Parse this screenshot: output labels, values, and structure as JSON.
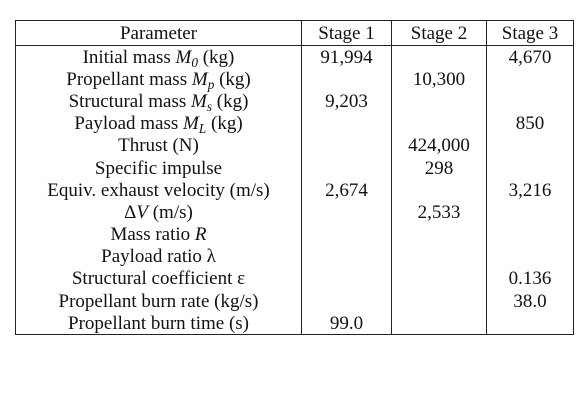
{
  "table": {
    "headers": [
      "Parameter",
      "Stage 1",
      "Stage 2",
      "Stage 3"
    ],
    "rows": [
      {
        "parameter": {
          "text": "Initial mass ",
          "sym": "M",
          "sub": "0",
          "unit": " (kg)"
        },
        "stage1": "91,994",
        "stage2": "",
        "stage3": "4,670"
      },
      {
        "parameter": {
          "text": "Propellant mass ",
          "sym": "M",
          "sub": "p",
          "unit": " (kg)"
        },
        "stage1": "",
        "stage2": "10,300",
        "stage3": ""
      },
      {
        "parameter": {
          "text": "Structural mass ",
          "sym": "M",
          "sub": "s",
          "unit": " (kg)"
        },
        "stage1": "9,203",
        "stage2": "",
        "stage3": ""
      },
      {
        "parameter": {
          "text": "Payload mass ",
          "sym": "M",
          "sub": "L",
          "unit": " (kg)"
        },
        "stage1": "",
        "stage2": "",
        "stage3": "850"
      },
      {
        "parameter": {
          "text": "Thrust (N)",
          "sym": "",
          "sub": "",
          "unit": ""
        },
        "stage1": "",
        "stage2": "424,000",
        "stage3": ""
      },
      {
        "parameter": {
          "text": "Specific impulse",
          "sym": "",
          "sub": "",
          "unit": ""
        },
        "stage1": "",
        "stage2": "298",
        "stage3": ""
      },
      {
        "parameter": {
          "text": "Equiv. exhaust velocity (m/s)",
          "sym": "",
          "sub": "",
          "unit": ""
        },
        "stage1": "2,674",
        "stage2": "",
        "stage3": "3,216"
      },
      {
        "parameter": {
          "text": "Δ",
          "sym": "V",
          "sub": "",
          "unit": " (m/s)"
        },
        "stage1": "",
        "stage2": "2,533",
        "stage3": ""
      },
      {
        "parameter": {
          "text": "Mass ratio ",
          "sym": "R",
          "sub": "",
          "unit": ""
        },
        "stage1": "",
        "stage2": "",
        "stage3": ""
      },
      {
        "parameter": {
          "text": "Payload ratio λ",
          "sym": "",
          "sub": "",
          "unit": ""
        },
        "stage1": "",
        "stage2": "",
        "stage3": ""
      },
      {
        "parameter": {
          "text": "Structural coefficient ε",
          "sym": "",
          "sub": "",
          "unit": ""
        },
        "stage1": "",
        "stage2": "",
        "stage3": "0.136"
      },
      {
        "parameter": {
          "text": "Propellant burn rate (kg/s)",
          "sym": "",
          "sub": "",
          "unit": ""
        },
        "stage1": "",
        "stage2": "",
        "stage3": "38.0"
      },
      {
        "parameter": {
          "text": "Propellant burn time (s)",
          "sym": "",
          "sub": "",
          "unit": ""
        },
        "stage1": "99.0",
        "stage2": "",
        "stage3": ""
      }
    ]
  }
}
